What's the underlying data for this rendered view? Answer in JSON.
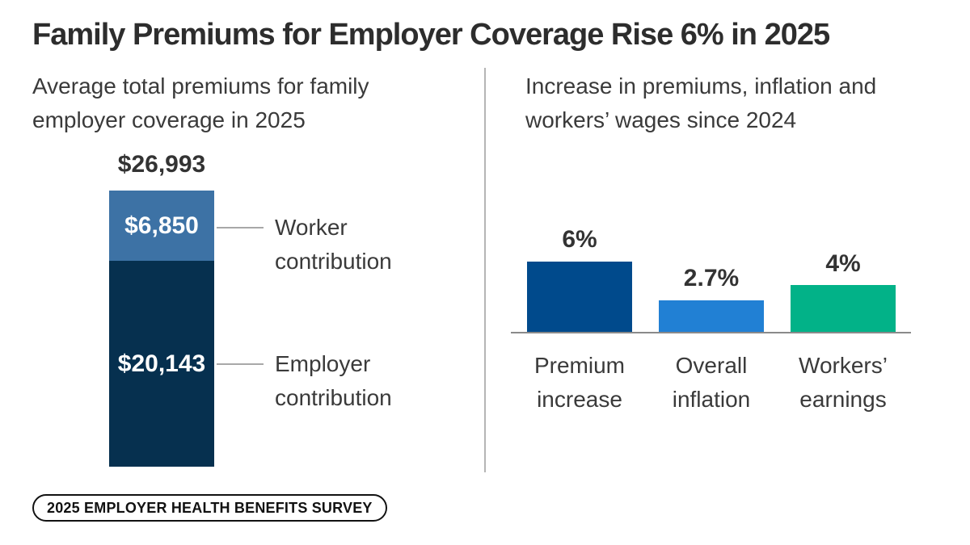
{
  "title": "Family Premiums for Employer Coverage Rise 6% in 2025",
  "badge": "2025 EMPLOYER HEALTH BENEFITS SURVEY",
  "left_chart": {
    "subtitle": "Average total premiums for family employer coverage in 2025",
    "total_label": "$26,993",
    "worker": {
      "value_label": "$6,850",
      "label": "Worker contribution",
      "color": "#3d72a5"
    },
    "employer": {
      "value_label": "$20,143",
      "label": "Employer contribution",
      "color": "#06304f"
    }
  },
  "right_chart": {
    "subtitle": "Increase in premiums, inflation and workers’ wages since 2024",
    "bars": [
      {
        "label": "Premium increase",
        "value_label": "6%",
        "color": "#004a8c"
      },
      {
        "label": "Overall inflation",
        "value_label": "2.7%",
        "color": "#2180d4"
      },
      {
        "label": "Workers’ earnings",
        "value_label": "4%",
        "color": "#02b288"
      }
    ]
  },
  "chart_data": [
    {
      "type": "bar",
      "subtype": "stacked-single-column",
      "title": "Average total premiums for family employer coverage in 2025",
      "categories": [
        "Family employer coverage 2025"
      ],
      "series": [
        {
          "name": "Worker contribution",
          "values": [
            6850
          ],
          "color": "#3d72a5",
          "data_label": "$6,850"
        },
        {
          "name": "Employer contribution",
          "values": [
            20143
          ],
          "color": "#06304f",
          "data_label": "$20,143"
        }
      ],
      "total": 26993,
      "total_label": "$26,993",
      "grid": false,
      "legend_position": "right-callouts"
    },
    {
      "type": "bar",
      "title": "Increase in premiums, inflation and workers’ wages since 2024",
      "categories": [
        "Premium increase",
        "Overall inflation",
        "Workers’ earnings"
      ],
      "values": [
        6,
        2.7,
        4
      ],
      "value_labels": [
        "6%",
        "2.7%",
        "4%"
      ],
      "colors": [
        "#004a8c",
        "#2180d4",
        "#02b288"
      ],
      "unit": "percent",
      "ylim": [
        0,
        6.5
      ],
      "grid": false,
      "legend_position": "none"
    }
  ]
}
